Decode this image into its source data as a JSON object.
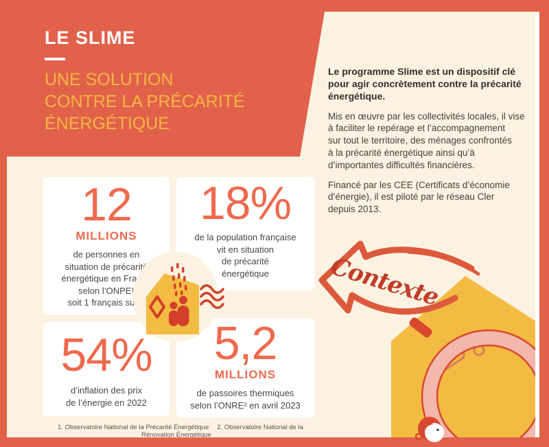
{
  "colors": {
    "frame_orange": "#e2614a",
    "accent_yellow": "#f2b843",
    "background_cream": "#fcf2e1",
    "stat_orange": "#ee6a4e",
    "illustration_red": "#d23f2a",
    "house_yellow": "#f4bb42",
    "lens_pink": "#f3b7ac",
    "card_white": "#ffffff",
    "text_dark": "#332f2c"
  },
  "header": {
    "title": "LE SLIME",
    "subtitle_lines": [
      "UNE SOLUTION",
      "CONTRE LA PRÉCARITÉ",
      "ÉNERGÉTIQUE"
    ]
  },
  "intro": {
    "lead_lines": [
      "Le programme Slime est un dispositif clé",
      "pour agir concrètement contre la précarité",
      "énergétique."
    ],
    "body1_lines": [
      "Mis en œuvre par les collectivités locales, il vise",
      "à faciliter le repérage et l’accompagnement",
      "sur tout le territoire, des ménages confrontés",
      "à la précarité énergétique ainsi qu’à",
      "d’importantes difficultés financières."
    ],
    "body2_lines": [
      "Financé par les CEE (Certificats d’économie",
      "d’énergie), il est piloté par le réseau Cler",
      "depuis 2013."
    ]
  },
  "stats": [
    {
      "value": "12",
      "unit": "MILLIONS",
      "lines": [
        "de personnes en",
        "situation de précarité",
        "énergétique en France",
        "selon l’ONPE¹",
        "soit 1 français sur 5"
      ]
    },
    {
      "value": "18%",
      "unit": "",
      "lines": [
        "de la population française",
        "vit en situation",
        "de précarité",
        "énergétique"
      ]
    },
    {
      "value": "54%",
      "unit": "",
      "lines": [
        "d’inflation des prix",
        "de l’énergie en 2022"
      ]
    },
    {
      "value": "5,2",
      "unit": "MILLIONS",
      "lines": [
        "de passoires thermiques",
        "selon l’ONRE² en avril 2023"
      ]
    }
  ],
  "context": {
    "label": "Contexte"
  },
  "footnotes": {
    "n1": "1. Observatoire National de la Précarité Énergétique",
    "n2": "2. Observatoire National de la Rénovation Énergétique"
  },
  "icons": {
    "arrow": "hand-drawn-arrow-left-icon",
    "small_house": "house-energy-loss-icon",
    "large_house": "house-silhouette-icon",
    "lens": "magnifying-lens-icon",
    "character": "person-looking-up-icon"
  }
}
